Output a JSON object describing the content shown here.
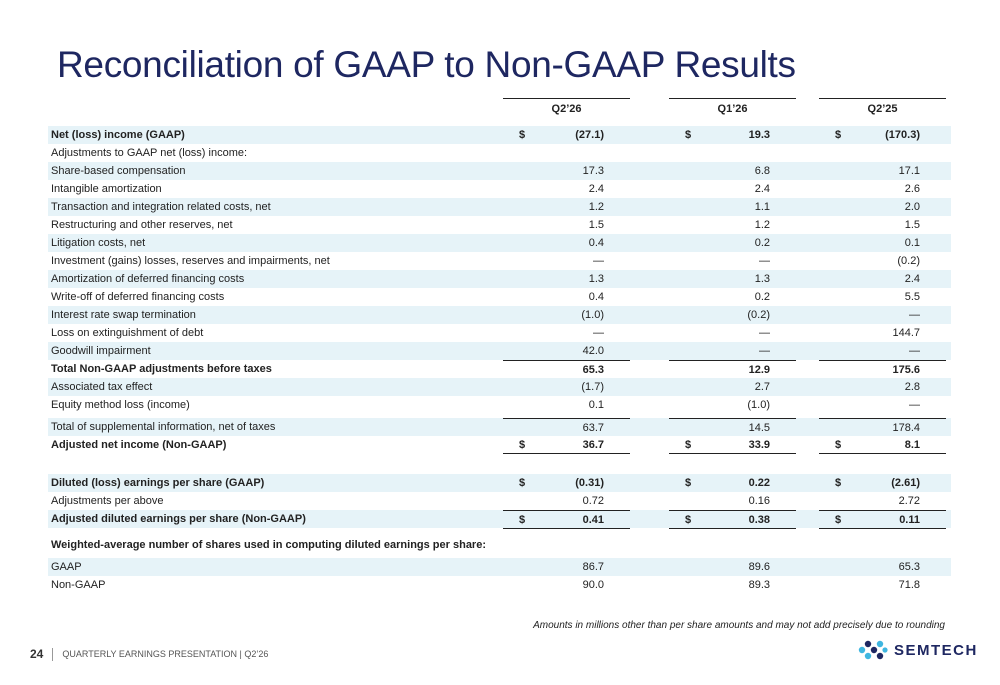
{
  "title": "Reconciliation of GAAP to Non-GAAP Results",
  "columns": [
    "Q2’26",
    "Q1’26",
    "Q2’25"
  ],
  "rows": [
    {
      "label": "Net (loss) income (GAAP)",
      "v": [
        "(27.1)",
        "19.3",
        "(170.3)"
      ],
      "cur": [
        "$",
        "$",
        "$"
      ]
    },
    {
      "label": "Adjustments to GAAP net (loss) income:",
      "v": [
        "",
        "",
        ""
      ],
      "cur": [
        "",
        "",
        ""
      ]
    },
    {
      "label": "Share-based compensation",
      "v": [
        "17.3",
        "6.8",
        "17.1"
      ],
      "cur": [
        "",
        "",
        ""
      ]
    },
    {
      "label": "Intangible amortization",
      "v": [
        "2.4",
        "2.4",
        "2.6"
      ],
      "cur": [
        "",
        "",
        ""
      ]
    },
    {
      "label": "Transaction and integration related costs, net",
      "v": [
        "1.2",
        "1.1",
        "2.0"
      ],
      "cur": [
        "",
        "",
        ""
      ]
    },
    {
      "label": "Restructuring and other reserves, net",
      "v": [
        "1.5",
        "1.2",
        "1.5"
      ],
      "cur": [
        "",
        "",
        ""
      ]
    },
    {
      "label": "Litigation costs, net",
      "v": [
        "0.4",
        "0.2",
        "0.1"
      ],
      "cur": [
        "",
        "",
        ""
      ]
    },
    {
      "label": "Investment (gains) losses, reserves and impairments, net",
      "v": [
        "—",
        "—",
        "(0.2)"
      ],
      "cur": [
        "",
        "",
        ""
      ]
    },
    {
      "label": "Amortization of deferred financing costs",
      "v": [
        "1.3",
        "1.3",
        "2.4"
      ],
      "cur": [
        "",
        "",
        ""
      ]
    },
    {
      "label": "Write-off of deferred financing costs",
      "v": [
        "0.4",
        "0.2",
        "5.5"
      ],
      "cur": [
        "",
        "",
        ""
      ]
    },
    {
      "label": "Interest rate swap termination",
      "v": [
        "(1.0)",
        "(0.2)",
        "—"
      ],
      "cur": [
        "",
        "",
        ""
      ]
    },
    {
      "label": "Loss on extinguishment of debt",
      "v": [
        "—",
        "—",
        "144.7"
      ],
      "cur": [
        "",
        "",
        ""
      ]
    },
    {
      "label": "Goodwill impairment",
      "v": [
        "42.0",
        "—",
        "—"
      ],
      "cur": [
        "",
        "",
        ""
      ]
    },
    {
      "label": "Total Non-GAAP adjustments before taxes",
      "v": [
        "65.3",
        "12.9",
        "175.6"
      ],
      "cur": [
        "",
        "",
        ""
      ]
    },
    {
      "label": "Associated tax effect",
      "v": [
        "(1.7)",
        "2.7",
        "2.8"
      ],
      "cur": [
        "",
        "",
        ""
      ]
    },
    {
      "label": "Equity method loss (income)",
      "v": [
        "0.1",
        "(1.0)",
        "—"
      ],
      "cur": [
        "",
        "",
        ""
      ]
    },
    {
      "label": "Total of supplemental information, net of taxes",
      "v": [
        "63.7",
        "14.5",
        "178.4"
      ],
      "cur": [
        "",
        "",
        ""
      ]
    },
    {
      "label": "Adjusted net income (Non-GAAP)",
      "v": [
        "36.7",
        "33.9",
        "8.1"
      ],
      "cur": [
        "$",
        "$",
        "$"
      ]
    },
    {
      "label": "Diluted (loss) earnings per share (GAAP)",
      "v": [
        "(0.31)",
        "0.22",
        "(2.61)"
      ],
      "cur": [
        "$",
        "$",
        "$"
      ]
    },
    {
      "label": "Adjustments per above",
      "v": [
        "0.72",
        "0.16",
        "2.72"
      ],
      "cur": [
        "",
        "",
        ""
      ]
    },
    {
      "label": "Adjusted diluted earnings per share (Non-GAAP)",
      "v": [
        "0.41",
        "0.38",
        "0.11"
      ],
      "cur": [
        "$",
        "$",
        "$"
      ]
    },
    {
      "label": "Weighted-average number of shares used in computing diluted earnings per share:",
      "v": [
        "",
        "",
        ""
      ],
      "cur": [
        "",
        "",
        ""
      ]
    },
    {
      "label": "GAAP",
      "v": [
        "86.7",
        "89.6",
        "65.3"
      ],
      "cur": [
        "",
        "",
        ""
      ]
    },
    {
      "label": "Non-GAAP",
      "v": [
        "90.0",
        "89.3",
        "71.8"
      ],
      "cur": [
        "",
        "",
        ""
      ]
    }
  ],
  "note": "Amounts in millions other than per share amounts  and may not add precisely due to rounding",
  "footer": {
    "page": "24",
    "text": "QUARTERLY EARNINGS PRESENTATION | Q2’26"
  },
  "logo": {
    "wordmark": "SEMTECH",
    "icon": "semtech-logo-icon",
    "color": "#1e2761",
    "accent": "#3fb6e0"
  },
  "colors": {
    "title": "#1e2761",
    "row_shade": "#e6f3f8"
  }
}
